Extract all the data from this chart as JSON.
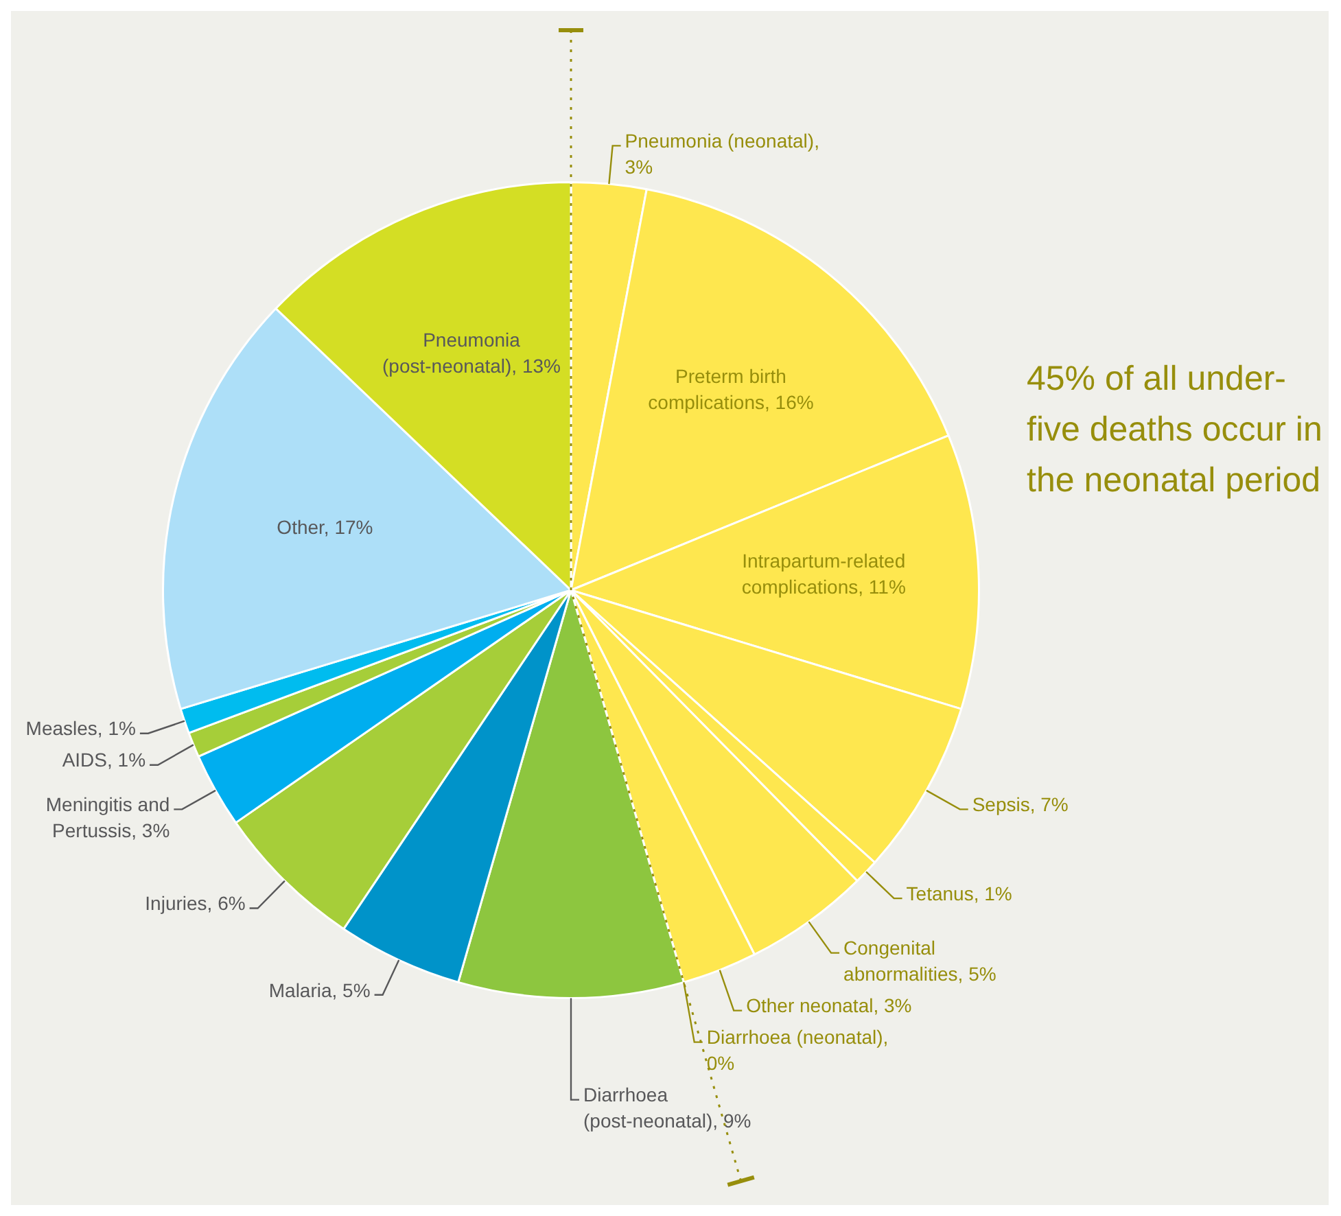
{
  "chart_data": {
    "type": "pie",
    "categories": [
      "Pneumonia (neonatal), 3%",
      "Preterm birth complications, 16%",
      "Intrapartum-related complications, 11%",
      "Sepsis, 7%",
      "Tetanus, 1%",
      "Congenital abnormalities, 5%",
      "Other neonatal, 3%",
      "Diarrhoea (neonatal),  0%",
      "Diarrhoea (post-neonatal), 9%",
      "Malaria, 5%",
      "Injuries, 6%",
      "Meningitis and Pertussis, 3%",
      "AIDS, 1%",
      "Measles, 1%",
      "Other, 17%",
      "Pneumonia (post-neonatal), 13%"
    ],
    "values": [
      3,
      16,
      11,
      7,
      1,
      5,
      3,
      0,
      9,
      5,
      6,
      3,
      1,
      1,
      17,
      13
    ],
    "colors": [
      "#fee74f",
      "#fee74f",
      "#fee74f",
      "#fee74f",
      "#fee74f",
      "#fee74f",
      "#fee74f",
      "#fee74f",
      "#8dc63f",
      "#0093c9",
      "#a6ce39",
      "#00aeef",
      "#a6ce39",
      "#00bcef",
      "#addff8",
      "#d4de24"
    ],
    "annotations": [
      "45% of all under-five deaths occur in the neonatal period"
    ],
    "legend": false
  }
}
